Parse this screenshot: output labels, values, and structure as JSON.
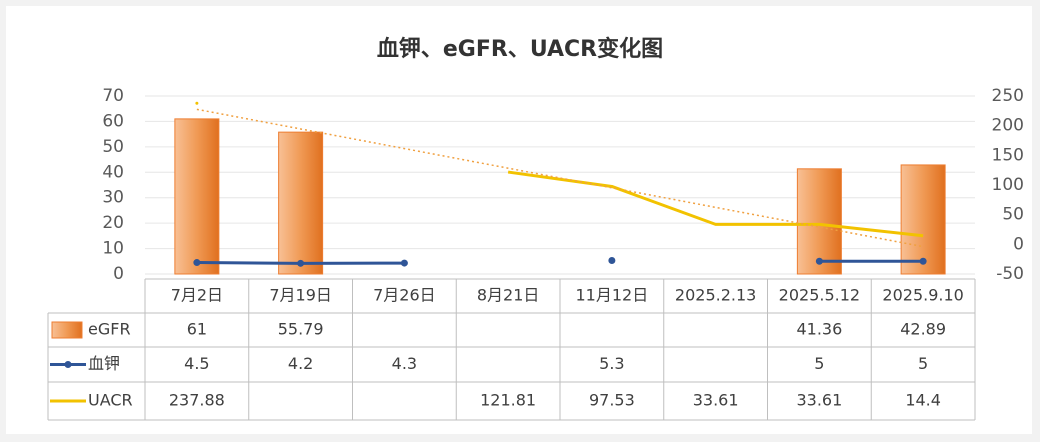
{
  "chart_data": {
    "type": "combo",
    "title": "血钾、eGFR、UACR变化图",
    "categories": [
      "7月2日",
      "7月19日",
      "7月26日",
      "8月21日",
      "11月12日",
      "2025.2.13",
      "2025.5.12",
      "2025.9.10"
    ],
    "series": [
      {
        "name": "eGFR",
        "type": "bar",
        "color": "#ed7d31",
        "values": [
          61,
          55.79,
          null,
          null,
          null,
          null,
          41.36,
          42.89
        ]
      },
      {
        "name": "血钾",
        "type": "line",
        "color": "#2f5597",
        "markers": true,
        "values": [
          4.5,
          4.2,
          4.3,
          null,
          5.3,
          null,
          5,
          5
        ]
      },
      {
        "name": "UACR",
        "type": "line",
        "color": "#f2c200",
        "axis": "y2",
        "markers": false,
        "trendline": {
          "type": "linear",
          "color": "#f0a040"
        },
        "values": [
          237.88,
          null,
          null,
          121.81,
          97.53,
          33.61,
          33.61,
          14.4
        ]
      }
    ],
    "ylim": [
      0,
      70
    ],
    "yticks": [
      0,
      10,
      20,
      30,
      40,
      50,
      60,
      70
    ],
    "y2lim": [
      -50,
      250
    ],
    "y2ticks": [
      -50,
      0,
      50,
      100,
      150,
      200,
      250
    ],
    "grid": true,
    "data_table": true
  }
}
